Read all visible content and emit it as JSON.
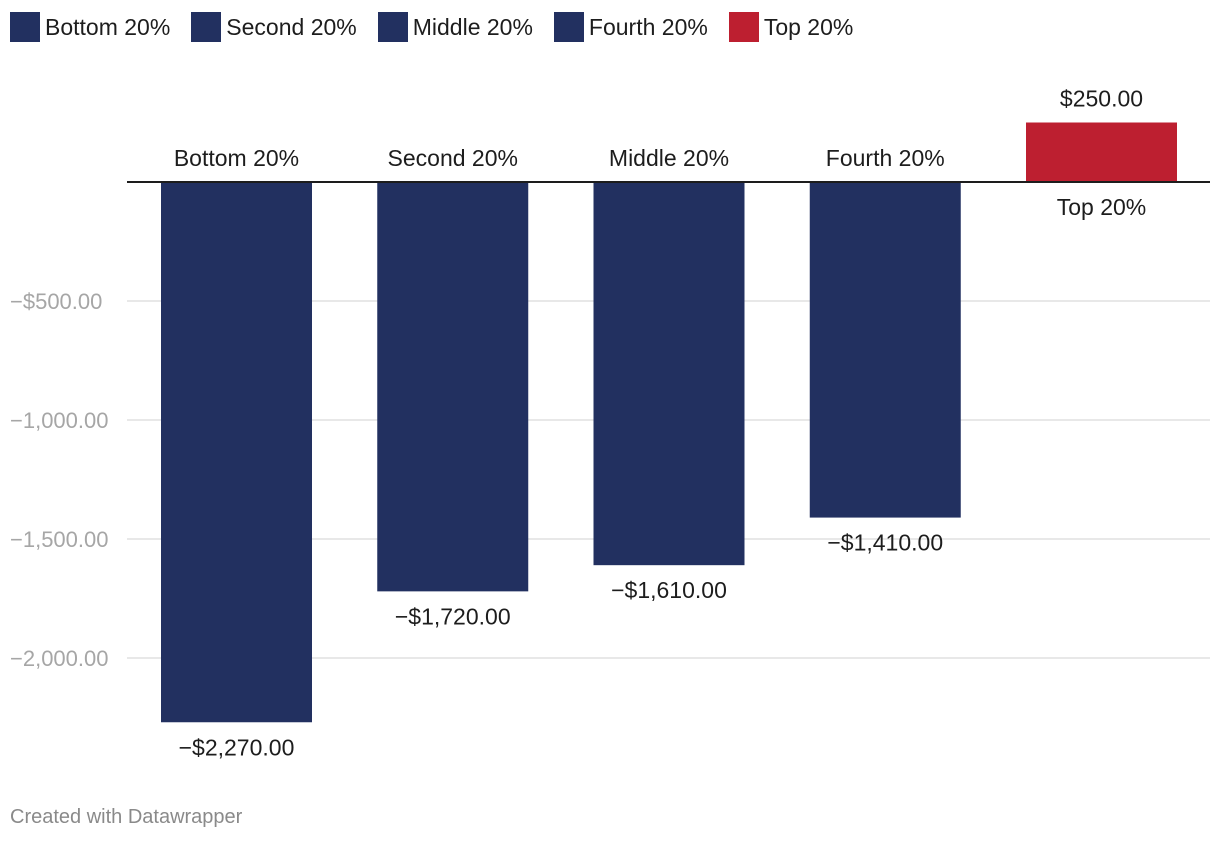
{
  "legend": [
    {
      "label": "Bottom 20%",
      "color": "#223060"
    },
    {
      "label": "Second 20%",
      "color": "#223060"
    },
    {
      "label": "Middle 20%",
      "color": "#223060"
    },
    {
      "label": "Fourth 20%",
      "color": "#223060"
    },
    {
      "label": "Top 20%",
      "color": "#bd1f30"
    }
  ],
  "chart_data": {
    "type": "bar",
    "categories": [
      "Bottom 20%",
      "Second 20%",
      "Middle 20%",
      "Fourth 20%",
      "Top 20%"
    ],
    "values": [
      -2270,
      -1720,
      -1610,
      -1410,
      250
    ],
    "value_labels": [
      "−$2,270.00",
      "−$1,720.00",
      "−$1,610.00",
      "−$1,410.00",
      "$250.00"
    ],
    "colors": [
      "#223060",
      "#223060",
      "#223060",
      "#223060",
      "#bd1f30"
    ],
    "yticks": [
      {
        "value": -500,
        "label": "−$500.00"
      },
      {
        "value": -1000,
        "label": "−1,000.00"
      },
      {
        "value": -1500,
        "label": "−1,500.00"
      },
      {
        "value": -2000,
        "label": "−2,000.00"
      }
    ],
    "ylim": [
      -2270,
      250
    ],
    "grid": true,
    "legend_position": "top-left",
    "title": "",
    "xlabel": "",
    "ylabel": ""
  },
  "footer": {
    "credit": "Created with Datawrapper"
  }
}
